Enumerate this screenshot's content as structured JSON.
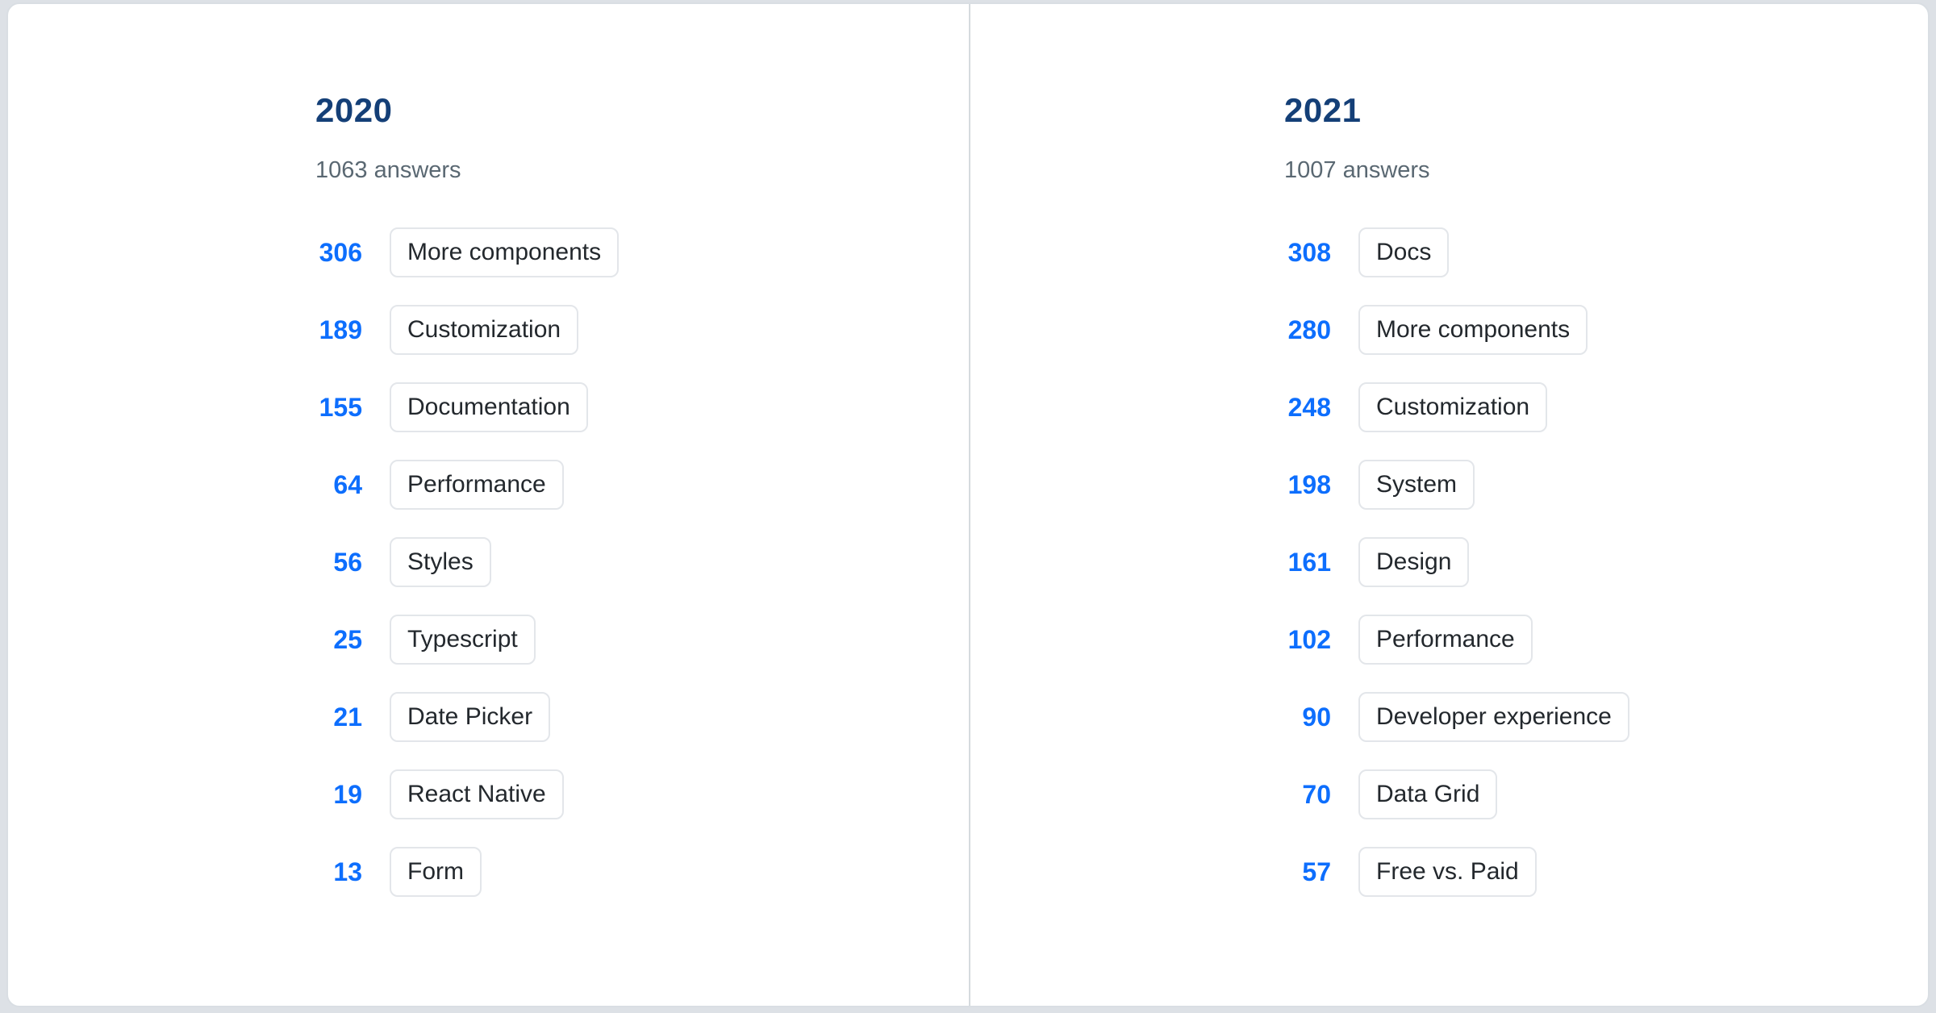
{
  "columns": [
    {
      "year": "2020",
      "answers": "1063 answers",
      "items": [
        {
          "count": "306",
          "label": "More components"
        },
        {
          "count": "189",
          "label": "Customization"
        },
        {
          "count": "155",
          "label": "Documentation"
        },
        {
          "count": "64",
          "label": "Performance"
        },
        {
          "count": "56",
          "label": "Styles"
        },
        {
          "count": "25",
          "label": "Typescript"
        },
        {
          "count": "21",
          "label": "Date Picker"
        },
        {
          "count": "19",
          "label": "React Native"
        },
        {
          "count": "13",
          "label": "Form"
        }
      ]
    },
    {
      "year": "2021",
      "answers": "1007 answers",
      "items": [
        {
          "count": "308",
          "label": "Docs"
        },
        {
          "count": "280",
          "label": "More components"
        },
        {
          "count": "248",
          "label": "Customization"
        },
        {
          "count": "198",
          "label": "System"
        },
        {
          "count": "161",
          "label": "Design"
        },
        {
          "count": "102",
          "label": "Performance"
        },
        {
          "count": "90",
          "label": "Developer experience"
        },
        {
          "count": "70",
          "label": "Data Grid"
        },
        {
          "count": "57",
          "label": "Free vs. Paid"
        }
      ]
    }
  ],
  "colors": {
    "page_background": "#dde1e6",
    "card_background": "#ffffff",
    "card_border": "#d9dee3",
    "divider": "#d5dade",
    "year_heading": "#143f77",
    "answers_text": "#5a6872",
    "count_text": "#0d6efd",
    "chip_text": "#23282d",
    "chip_border": "#e3e6ea"
  },
  "chart_data": [
    {
      "type": "table",
      "title": "2020",
      "subtitle": "1063 answers",
      "total_answers": 1063,
      "categories": [
        "More components",
        "Customization",
        "Documentation",
        "Performance",
        "Styles",
        "Typescript",
        "Date Picker",
        "React Native",
        "Form"
      ],
      "values": [
        306,
        189,
        155,
        64,
        56,
        25,
        21,
        19,
        13
      ]
    },
    {
      "type": "table",
      "title": "2021",
      "subtitle": "1007 answers",
      "total_answers": 1007,
      "categories": [
        "Docs",
        "More components",
        "Customization",
        "System",
        "Design",
        "Performance",
        "Developer experience",
        "Data Grid",
        "Free vs. Paid"
      ],
      "values": [
        308,
        280,
        248,
        198,
        161,
        102,
        90,
        70,
        57
      ]
    }
  ]
}
